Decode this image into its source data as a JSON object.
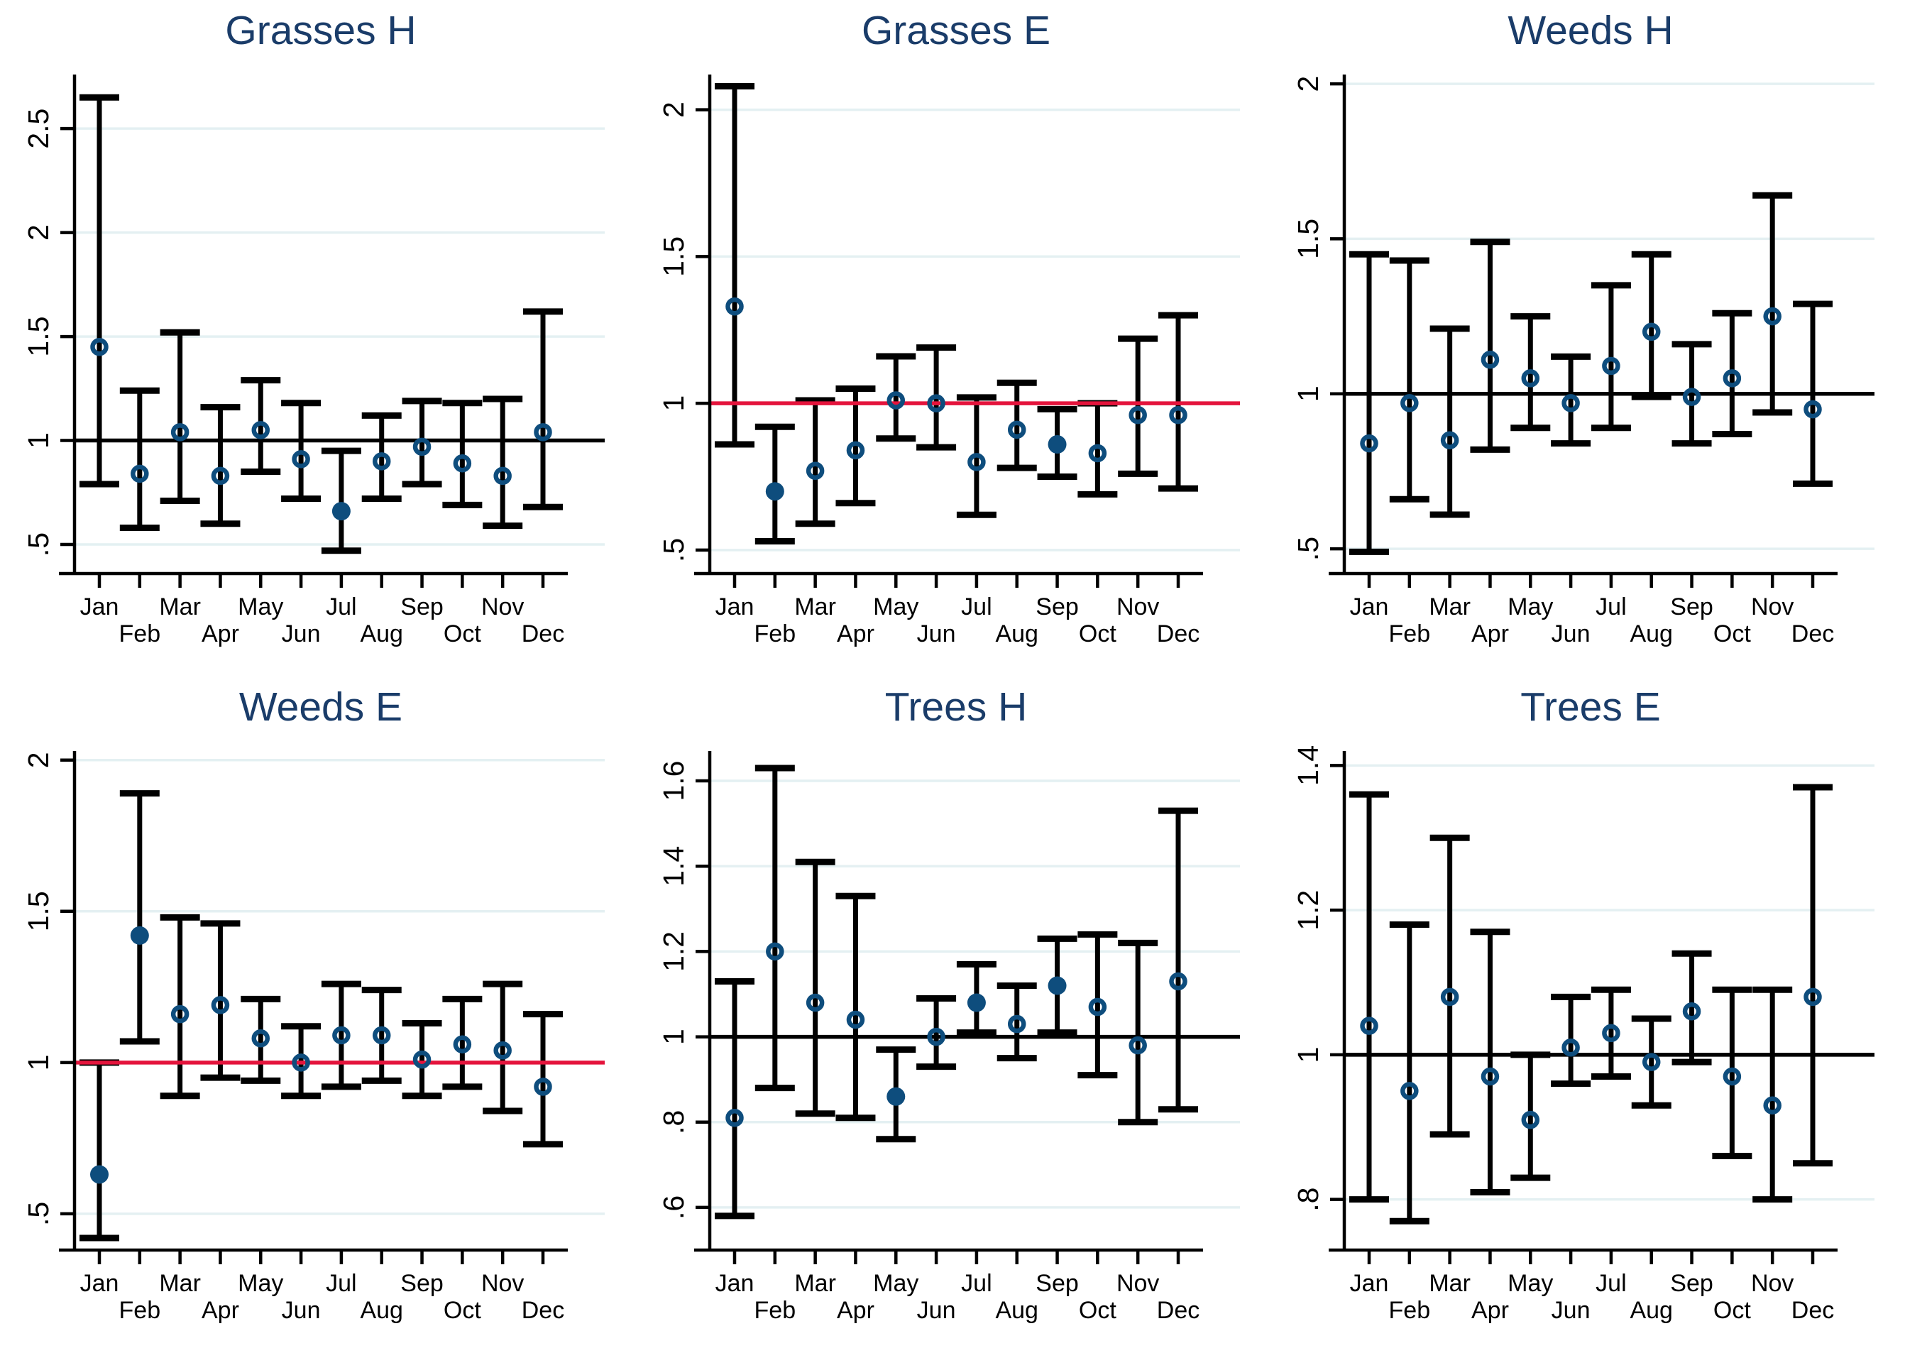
{
  "figure": {
    "background": "#ffffff",
    "layout": "3x2-grid-of-errorbar-plots",
    "months": [
      "Jan",
      "Feb",
      "Mar",
      "Apr",
      "May",
      "Jun",
      "Jul",
      "Aug",
      "Sep",
      "Oct",
      "Nov",
      "Dec"
    ],
    "month_label_row_upper": [
      "Jan",
      "Mar",
      "May",
      "Jul",
      "Sep",
      "Nov"
    ],
    "month_label_row_lower": [
      "Feb",
      "Apr",
      "Jun",
      "Aug",
      "Oct",
      "Dec"
    ]
  },
  "colors": {
    "marker_navy": "#0e4d7d",
    "title_navy": "#1a3c69",
    "refline_red": "#e4143c",
    "refline_black": "#000000",
    "gridline": "#e4f0f2",
    "axis": "#000000"
  },
  "chart_data": [
    {
      "type": "scatter",
      "title": "Grasses H",
      "xlabel": "",
      "ylabel": "",
      "refline": {
        "y": 1,
        "color": "#000000"
      },
      "ylim": [
        0.36,
        2.76
      ],
      "grid": true,
      "yticks": [
        {
          "v": 2.5,
          "label": "2.5"
        },
        {
          "v": 2.0,
          "label": "2"
        },
        {
          "v": 1.5,
          "label": "1.5"
        },
        {
          "v": 1.0,
          "label": "1"
        },
        {
          "v": 0.5,
          "label": ".5"
        }
      ],
      "points": [
        {
          "month": "Jan",
          "value": 1.45,
          "ci_low": 0.79,
          "ci_high": 2.65,
          "filled": false
        },
        {
          "month": "Feb",
          "value": 0.84,
          "ci_low": 0.58,
          "ci_high": 1.24,
          "filled": false
        },
        {
          "month": "Mar",
          "value": 1.04,
          "ci_low": 0.71,
          "ci_high": 1.52,
          "filled": false
        },
        {
          "month": "Apr",
          "value": 0.83,
          "ci_low": 0.6,
          "ci_high": 1.16,
          "filled": false
        },
        {
          "month": "May",
          "value": 1.05,
          "ci_low": 0.85,
          "ci_high": 1.29,
          "filled": false
        },
        {
          "month": "Jun",
          "value": 0.91,
          "ci_low": 0.72,
          "ci_high": 1.18,
          "filled": false
        },
        {
          "month": "Jul",
          "value": 0.66,
          "ci_low": 0.47,
          "ci_high": 0.95,
          "filled": true
        },
        {
          "month": "Aug",
          "value": 0.9,
          "ci_low": 0.72,
          "ci_high": 1.12,
          "filled": false
        },
        {
          "month": "Sep",
          "value": 0.97,
          "ci_low": 0.79,
          "ci_high": 1.19,
          "filled": false
        },
        {
          "month": "Oct",
          "value": 0.89,
          "ci_low": 0.69,
          "ci_high": 1.18,
          "filled": false
        },
        {
          "month": "Nov",
          "value": 0.83,
          "ci_low": 0.59,
          "ci_high": 1.2,
          "filled": false
        },
        {
          "month": "Dec",
          "value": 1.04,
          "ci_low": 0.68,
          "ci_high": 1.62,
          "filled": false
        }
      ]
    },
    {
      "type": "scatter",
      "title": "Grasses E",
      "xlabel": "",
      "ylabel": "",
      "refline": {
        "y": 1,
        "color": "#e4143c"
      },
      "ylim": [
        0.42,
        2.12
      ],
      "grid": true,
      "yticks": [
        {
          "v": 2.0,
          "label": "2"
        },
        {
          "v": 1.5,
          "label": "1.5"
        },
        {
          "v": 1.0,
          "label": "1"
        },
        {
          "v": 0.5,
          "label": ".5"
        }
      ],
      "points": [
        {
          "month": "Jan",
          "value": 1.33,
          "ci_low": 0.86,
          "ci_high": 2.08,
          "filled": false
        },
        {
          "month": "Feb",
          "value": 0.7,
          "ci_low": 0.53,
          "ci_high": 0.92,
          "filled": true
        },
        {
          "month": "Mar",
          "value": 0.77,
          "ci_low": 0.59,
          "ci_high": 1.01,
          "filled": false
        },
        {
          "month": "Apr",
          "value": 0.84,
          "ci_low": 0.66,
          "ci_high": 1.05,
          "filled": false
        },
        {
          "month": "May",
          "value": 1.01,
          "ci_low": 0.88,
          "ci_high": 1.16,
          "filled": false
        },
        {
          "month": "Jun",
          "value": 1.0,
          "ci_low": 0.85,
          "ci_high": 1.19,
          "filled": false
        },
        {
          "month": "Jul",
          "value": 0.8,
          "ci_low": 0.62,
          "ci_high": 1.02,
          "filled": false
        },
        {
          "month": "Aug",
          "value": 0.91,
          "ci_low": 0.78,
          "ci_high": 1.07,
          "filled": false
        },
        {
          "month": "Sep",
          "value": 0.86,
          "ci_low": 0.75,
          "ci_high": 0.98,
          "filled": true
        },
        {
          "month": "Oct",
          "value": 0.83,
          "ci_low": 0.69,
          "ci_high": 1.0,
          "filled": false
        },
        {
          "month": "Nov",
          "value": 0.96,
          "ci_low": 0.76,
          "ci_high": 1.22,
          "filled": false
        },
        {
          "month": "Dec",
          "value": 0.96,
          "ci_low": 0.71,
          "ci_high": 1.3,
          "filled": false
        }
      ]
    },
    {
      "type": "scatter",
      "title": "Weeds H",
      "xlabel": "",
      "ylabel": "",
      "refline": {
        "y": 1,
        "color": "#000000"
      },
      "ylim": [
        0.42,
        2.03
      ],
      "grid": true,
      "yticks": [
        {
          "v": 2.0,
          "label": "2"
        },
        {
          "v": 1.5,
          "label": "1.5"
        },
        {
          "v": 1.0,
          "label": "1"
        },
        {
          "v": 0.5,
          "label": ".5"
        }
      ],
      "points": [
        {
          "month": "Jan",
          "value": 0.84,
          "ci_low": 0.49,
          "ci_high": 1.45,
          "filled": false
        },
        {
          "month": "Feb",
          "value": 0.97,
          "ci_low": 0.66,
          "ci_high": 1.43,
          "filled": false
        },
        {
          "month": "Mar",
          "value": 0.85,
          "ci_low": 0.61,
          "ci_high": 1.21,
          "filled": false
        },
        {
          "month": "Apr",
          "value": 1.11,
          "ci_low": 0.82,
          "ci_high": 1.49,
          "filled": false
        },
        {
          "month": "May",
          "value": 1.05,
          "ci_low": 0.89,
          "ci_high": 1.25,
          "filled": false
        },
        {
          "month": "Jun",
          "value": 0.97,
          "ci_low": 0.84,
          "ci_high": 1.12,
          "filled": false
        },
        {
          "month": "Jul",
          "value": 1.09,
          "ci_low": 0.89,
          "ci_high": 1.35,
          "filled": false
        },
        {
          "month": "Aug",
          "value": 1.2,
          "ci_low": 0.99,
          "ci_high": 1.45,
          "filled": false
        },
        {
          "month": "Sep",
          "value": 0.99,
          "ci_low": 0.84,
          "ci_high": 1.16,
          "filled": false
        },
        {
          "month": "Oct",
          "value": 1.05,
          "ci_low": 0.87,
          "ci_high": 1.26,
          "filled": false
        },
        {
          "month": "Nov",
          "value": 1.25,
          "ci_low": 0.94,
          "ci_high": 1.64,
          "filled": false
        },
        {
          "month": "Dec",
          "value": 0.95,
          "ci_low": 0.71,
          "ci_high": 1.29,
          "filled": false
        }
      ]
    },
    {
      "type": "scatter",
      "title": "Weeds E",
      "xlabel": "",
      "ylabel": "",
      "refline": {
        "y": 1,
        "color": "#e4143c"
      },
      "ylim": [
        0.38,
        2.03
      ],
      "grid": true,
      "yticks": [
        {
          "v": 2.0,
          "label": "2"
        },
        {
          "v": 1.5,
          "label": "1.5"
        },
        {
          "v": 1.0,
          "label": "1"
        },
        {
          "v": 0.5,
          "label": ".5"
        }
      ],
      "points": [
        {
          "month": "Jan",
          "value": 0.63,
          "ci_low": 0.42,
          "ci_high": 1.0,
          "filled": true
        },
        {
          "month": "Feb",
          "value": 1.42,
          "ci_low": 1.07,
          "ci_high": 1.89,
          "filled": true
        },
        {
          "month": "Mar",
          "value": 1.16,
          "ci_low": 0.89,
          "ci_high": 1.48,
          "filled": false
        },
        {
          "month": "Apr",
          "value": 1.19,
          "ci_low": 0.95,
          "ci_high": 1.46,
          "filled": false
        },
        {
          "month": "May",
          "value": 1.08,
          "ci_low": 0.94,
          "ci_high": 1.21,
          "filled": false
        },
        {
          "month": "Jun",
          "value": 1.0,
          "ci_low": 0.89,
          "ci_high": 1.12,
          "filled": false
        },
        {
          "month": "Jul",
          "value": 1.09,
          "ci_low": 0.92,
          "ci_high": 1.26,
          "filled": false
        },
        {
          "month": "Aug",
          "value": 1.09,
          "ci_low": 0.94,
          "ci_high": 1.24,
          "filled": false
        },
        {
          "month": "Sep",
          "value": 1.01,
          "ci_low": 0.89,
          "ci_high": 1.13,
          "filled": false
        },
        {
          "month": "Oct",
          "value": 1.06,
          "ci_low": 0.92,
          "ci_high": 1.21,
          "filled": false
        },
        {
          "month": "Nov",
          "value": 1.04,
          "ci_low": 0.84,
          "ci_high": 1.26,
          "filled": false
        },
        {
          "month": "Dec",
          "value": 0.92,
          "ci_low": 0.73,
          "ci_high": 1.16,
          "filled": false
        }
      ]
    },
    {
      "type": "scatter",
      "title": "Trees H",
      "xlabel": "",
      "ylabel": "",
      "refline": {
        "y": 1,
        "color": "#000000"
      },
      "ylim": [
        0.5,
        1.67
      ],
      "grid": true,
      "yticks": [
        {
          "v": 1.6,
          "label": "1.6"
        },
        {
          "v": 1.4,
          "label": "1.4"
        },
        {
          "v": 1.2,
          "label": "1.2"
        },
        {
          "v": 1.0,
          "label": "1"
        },
        {
          "v": 0.8,
          "label": ".8"
        },
        {
          "v": 0.6,
          "label": ".6"
        }
      ],
      "points": [
        {
          "month": "Jan",
          "value": 0.81,
          "ci_low": 0.58,
          "ci_high": 1.13,
          "filled": false
        },
        {
          "month": "Feb",
          "value": 1.2,
          "ci_low": 0.88,
          "ci_high": 1.63,
          "filled": false
        },
        {
          "month": "Mar",
          "value": 1.08,
          "ci_low": 0.82,
          "ci_high": 1.41,
          "filled": false
        },
        {
          "month": "Apr",
          "value": 1.04,
          "ci_low": 0.81,
          "ci_high": 1.33,
          "filled": false
        },
        {
          "month": "May",
          "value": 0.86,
          "ci_low": 0.76,
          "ci_high": 0.97,
          "filled": true
        },
        {
          "month": "Jun",
          "value": 1.0,
          "ci_low": 0.93,
          "ci_high": 1.09,
          "filled": false
        },
        {
          "month": "Jul",
          "value": 1.08,
          "ci_low": 1.01,
          "ci_high": 1.17,
          "filled": true
        },
        {
          "month": "Aug",
          "value": 1.03,
          "ci_low": 0.95,
          "ci_high": 1.12,
          "filled": false
        },
        {
          "month": "Sep",
          "value": 1.12,
          "ci_low": 1.01,
          "ci_high": 1.23,
          "filled": true
        },
        {
          "month": "Oct",
          "value": 1.07,
          "ci_low": 0.91,
          "ci_high": 1.24,
          "filled": false
        },
        {
          "month": "Nov",
          "value": 0.98,
          "ci_low": 0.8,
          "ci_high": 1.22,
          "filled": false
        },
        {
          "month": "Dec",
          "value": 1.13,
          "ci_low": 0.83,
          "ci_high": 1.53,
          "filled": false
        }
      ]
    },
    {
      "type": "scatter",
      "title": "Trees E",
      "xlabel": "",
      "ylabel": "",
      "refline": {
        "y": 1,
        "color": "#000000"
      },
      "ylim": [
        0.73,
        1.42
      ],
      "grid": true,
      "yticks": [
        {
          "v": 1.4,
          "label": "1.4"
        },
        {
          "v": 1.2,
          "label": "1.2"
        },
        {
          "v": 1.0,
          "label": "1"
        },
        {
          "v": 0.8,
          "label": ".8"
        }
      ],
      "points": [
        {
          "month": "Jan",
          "value": 1.04,
          "ci_low": 0.8,
          "ci_high": 1.36,
          "filled": false
        },
        {
          "month": "Feb",
          "value": 0.95,
          "ci_low": 0.77,
          "ci_high": 1.18,
          "filled": false
        },
        {
          "month": "Mar",
          "value": 1.08,
          "ci_low": 0.89,
          "ci_high": 1.3,
          "filled": false
        },
        {
          "month": "Apr",
          "value": 0.97,
          "ci_low": 0.81,
          "ci_high": 1.17,
          "filled": false
        },
        {
          "month": "May",
          "value": 0.91,
          "ci_low": 0.83,
          "ci_high": 1.0,
          "filled": false
        },
        {
          "month": "Jun",
          "value": 1.01,
          "ci_low": 0.96,
          "ci_high": 1.08,
          "filled": false
        },
        {
          "month": "Jul",
          "value": 1.03,
          "ci_low": 0.97,
          "ci_high": 1.09,
          "filled": false
        },
        {
          "month": "Aug",
          "value": 0.99,
          "ci_low": 0.93,
          "ci_high": 1.05,
          "filled": false
        },
        {
          "month": "Sep",
          "value": 1.06,
          "ci_low": 0.99,
          "ci_high": 1.14,
          "filled": false
        },
        {
          "month": "Oct",
          "value": 0.97,
          "ci_low": 0.86,
          "ci_high": 1.09,
          "filled": false
        },
        {
          "month": "Nov",
          "value": 0.93,
          "ci_low": 0.8,
          "ci_high": 1.09,
          "filled": false
        },
        {
          "month": "Dec",
          "value": 1.08,
          "ci_low": 0.85,
          "ci_high": 1.37,
          "filled": false
        }
      ]
    }
  ]
}
